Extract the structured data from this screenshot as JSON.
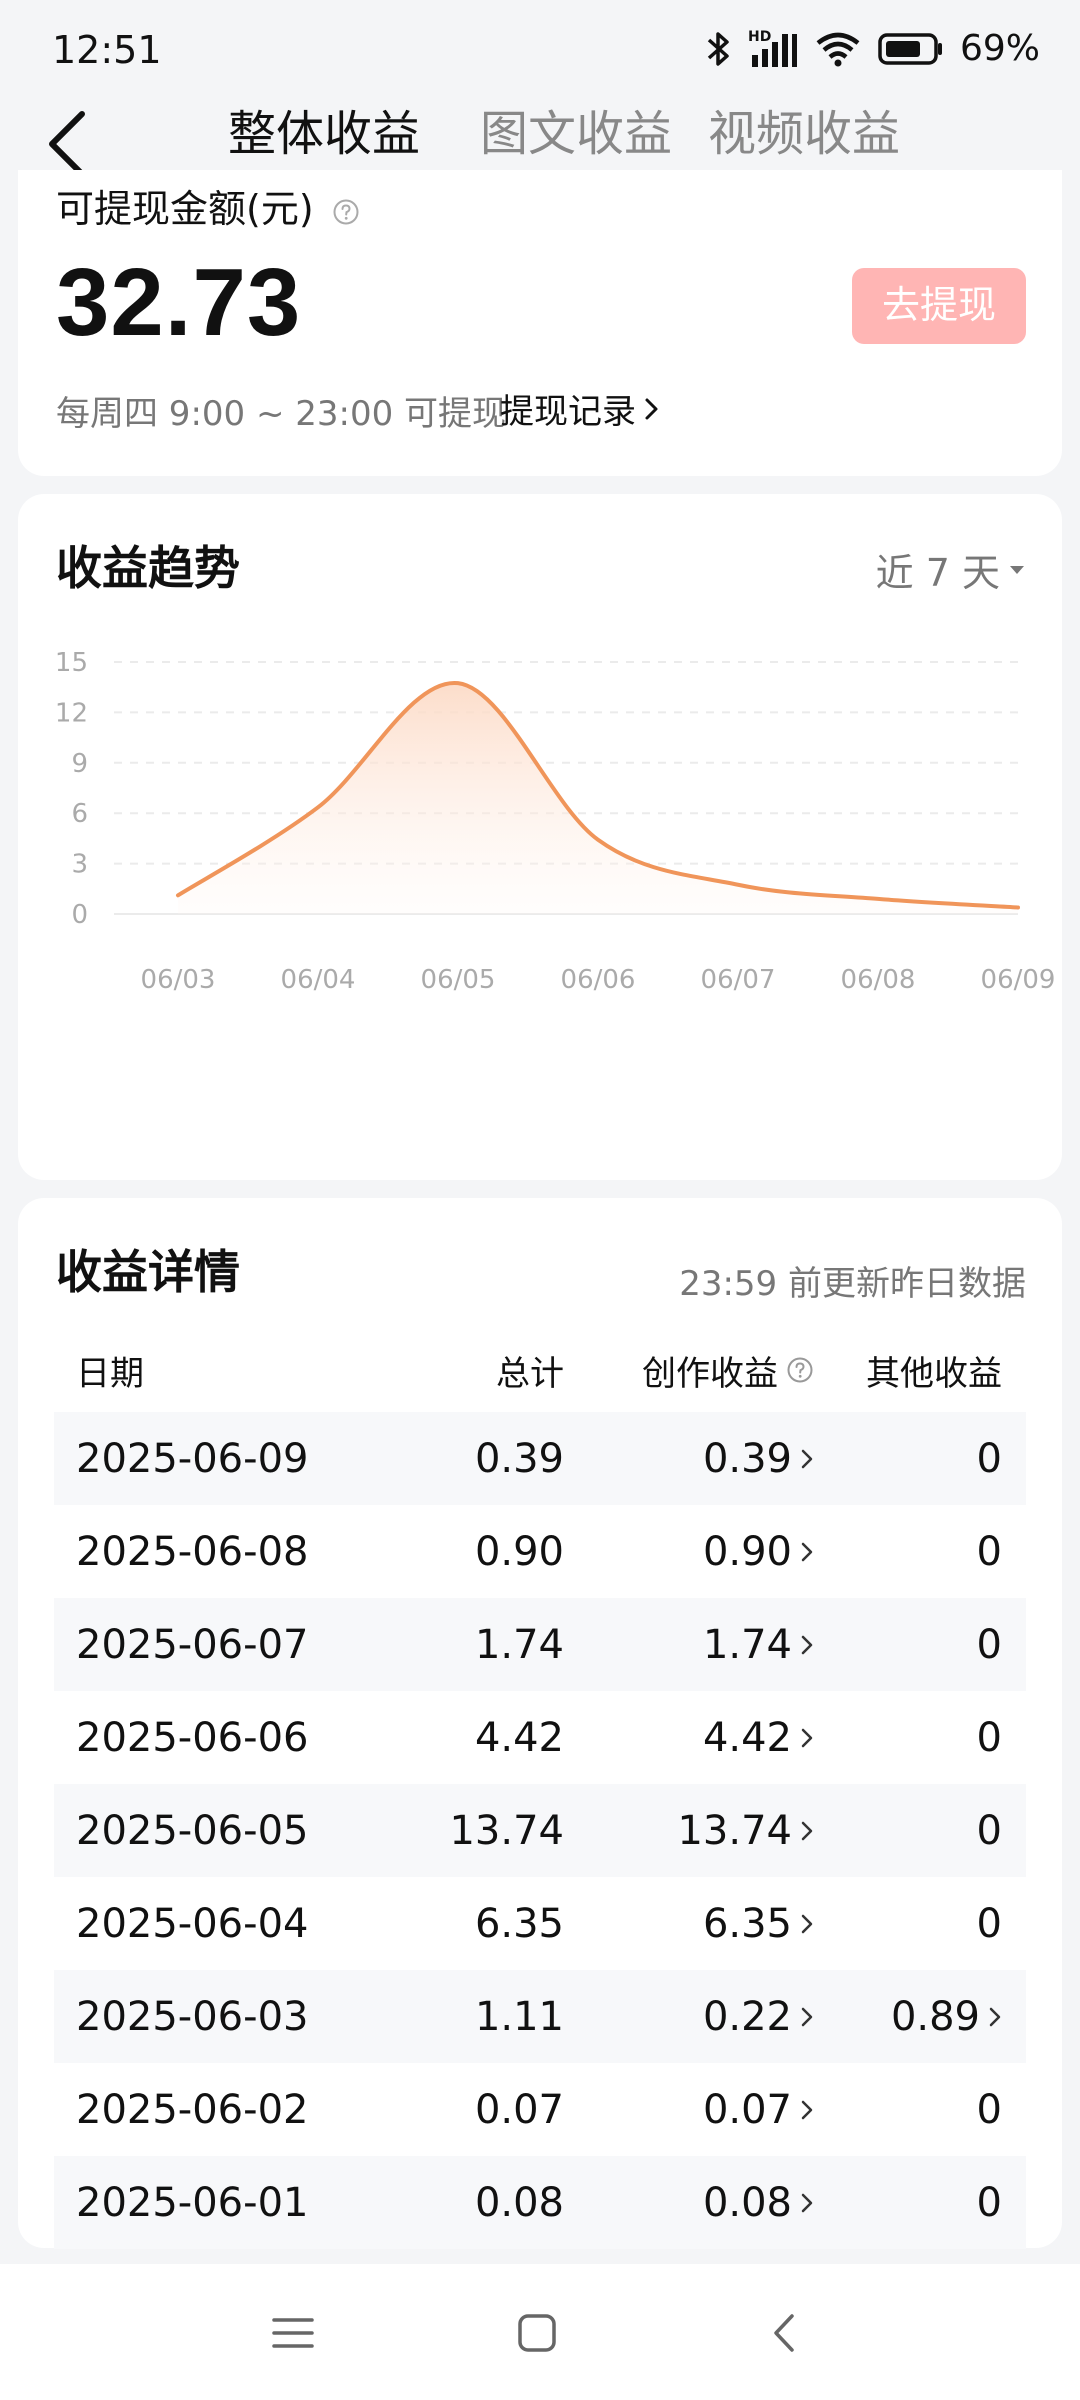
{
  "status_bar": {
    "time": "12:51",
    "battery": "69%",
    "network": "HD"
  },
  "header": {
    "tabs": [
      {
        "label": "整体收益",
        "active": true
      },
      {
        "label": "图文收益",
        "active": false
      },
      {
        "label": "视频收益",
        "active": false
      }
    ]
  },
  "withdraw": {
    "label": "可提现金额(元)",
    "amount": "32.73",
    "button_label": "去提现",
    "schedule": "每周四 9:00 ~ 23:00 可提现",
    "history_link": "提现记录"
  },
  "trend": {
    "title": "收益趋势",
    "period": "近 7 天"
  },
  "chart_data": {
    "type": "area",
    "categories": [
      "06/03",
      "06/04",
      "06/05",
      "06/06",
      "06/07",
      "06/08",
      "06/09"
    ],
    "series": [
      {
        "values": [
          1.11,
          6.35,
          13.74,
          4.42,
          1.74,
          0.9,
          0.39
        ]
      }
    ],
    "yticks": [
      0,
      3,
      6,
      9,
      12,
      15
    ],
    "ylim": [
      0,
      15
    ],
    "grid": true,
    "line_color": "#f0955a",
    "fill_color": "#fde3d2"
  },
  "details": {
    "title": "收益详情",
    "note": "23:59 前更新昨日数据",
    "columns": [
      "日期",
      "总计",
      "创作收益",
      "其他收益"
    ],
    "rows": [
      {
        "date": "2025-06-09",
        "total": "0.39",
        "creation": "0.39",
        "other": "0"
      },
      {
        "date": "2025-06-08",
        "total": "0.90",
        "creation": "0.90",
        "other": "0"
      },
      {
        "date": "2025-06-07",
        "total": "1.74",
        "creation": "1.74",
        "other": "0"
      },
      {
        "date": "2025-06-06",
        "total": "4.42",
        "creation": "4.42",
        "other": "0"
      },
      {
        "date": "2025-06-05",
        "total": "13.74",
        "creation": "13.74",
        "other": "0"
      },
      {
        "date": "2025-06-04",
        "total": "6.35",
        "creation": "6.35",
        "other": "0"
      },
      {
        "date": "2025-06-03",
        "total": "1.11",
        "creation": "0.22",
        "other": "0.89"
      },
      {
        "date": "2025-06-02",
        "total": "0.07",
        "creation": "0.07",
        "other": "0"
      },
      {
        "date": "2025-06-01",
        "total": "0.08",
        "creation": "0.08",
        "other": "0"
      }
    ]
  },
  "colors": {
    "accent_button": "#ffb5b4",
    "line": "#f0955a",
    "background": "#f4f5f7"
  }
}
